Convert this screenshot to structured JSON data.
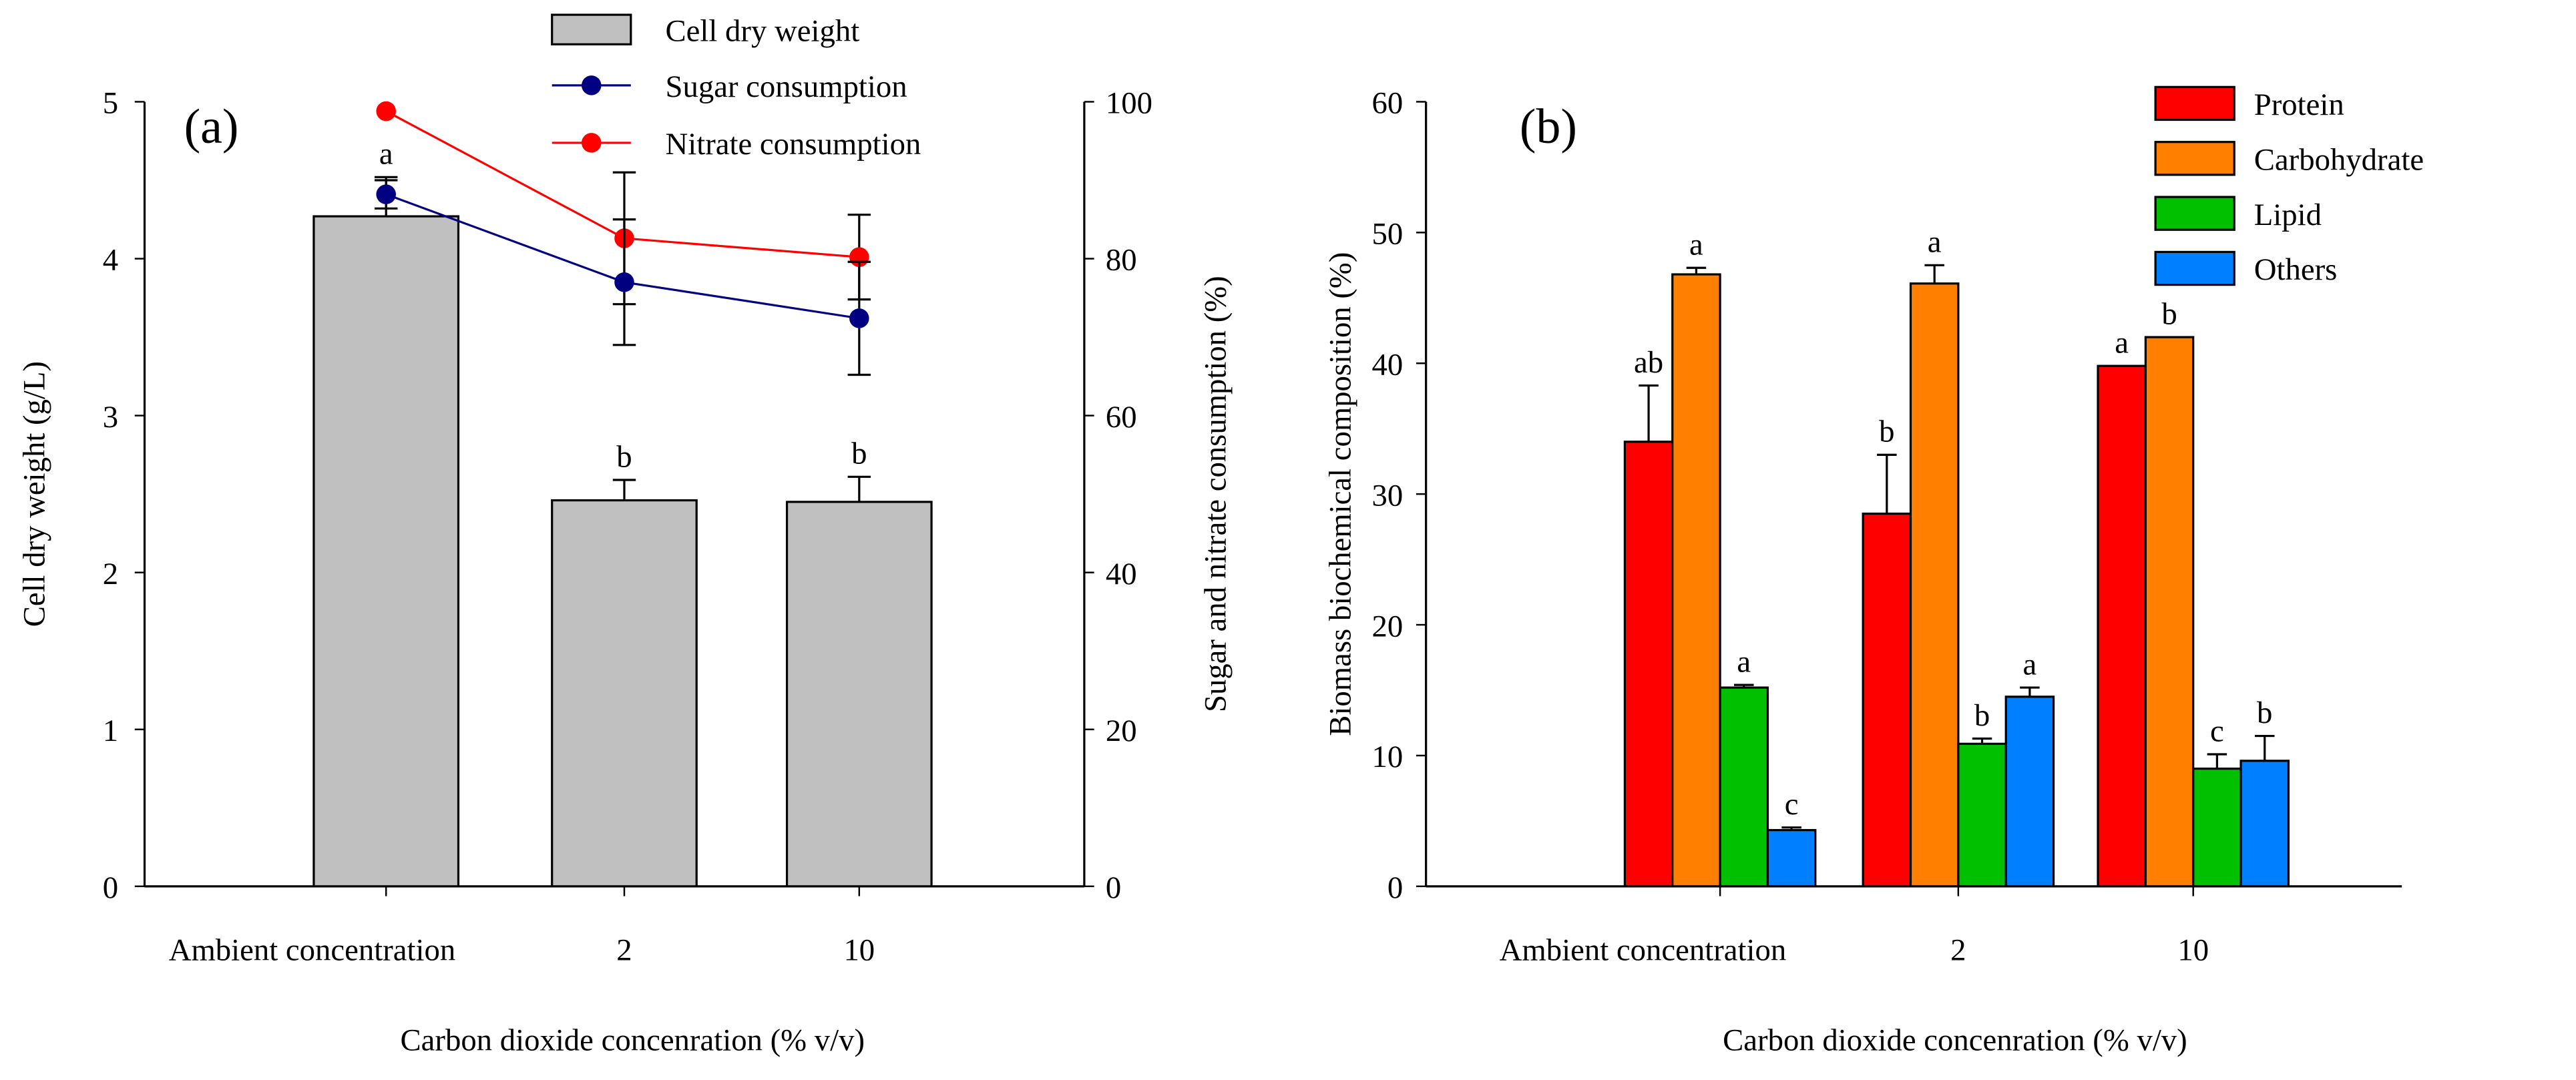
{
  "chart_data": [
    {
      "type": "bar",
      "panel_label": "(a)",
      "categories": [
        "Ambient concentration",
        "2",
        "10"
      ],
      "xlabel": "Carbon dioxide concenration (% v/v)",
      "ylabel": "Cell dry weight (g/L)",
      "ylabel_right": "Sugar and nitrate consumption (%)",
      "ylim": [
        0,
        5
      ],
      "yticks": [
        0,
        1,
        2,
        3,
        4,
        5
      ],
      "ylim_right": [
        0,
        100
      ],
      "yticks_right": [
        0,
        20,
        40,
        60,
        80,
        100
      ],
      "legend_position": "top-right",
      "series": [
        {
          "name": "Cell dry weight",
          "kind": "bar",
          "axis": "left",
          "color": "#c0c0c0",
          "values": [
            4.27,
            2.46,
            2.45
          ],
          "errors": [
            0.25,
            0.13,
            0.16
          ],
          "letters": [
            "a",
            "b",
            "b"
          ]
        },
        {
          "name": "Sugar consumption",
          "kind": "line",
          "axis": "right",
          "color": "#000080",
          "values": [
            88.2,
            77.0,
            72.4
          ],
          "errors": [
            1.8,
            8.0,
            7.2
          ]
        },
        {
          "name": "Nitrate consumption",
          "kind": "line",
          "axis": "right",
          "color": "#ff0000",
          "values": [
            98.8,
            82.6,
            80.2
          ],
          "errors": [
            0.5,
            8.4,
            5.4
          ]
        }
      ]
    },
    {
      "type": "bar",
      "panel_label": "(b)",
      "categories": [
        "Ambient concentration",
        "2",
        "10"
      ],
      "xlabel": "Carbon dioxide concenration (% v/v)",
      "ylabel": "Biomass biochemical composition (%)",
      "ylim": [
        0,
        60
      ],
      "yticks": [
        0,
        10,
        20,
        30,
        40,
        50,
        60
      ],
      "legend_position": "top-right",
      "series": [
        {
          "name": "Protein",
          "color": "#ff0000",
          "values": [
            34.0,
            28.5,
            39.8
          ],
          "errors": [
            4.3,
            4.5,
            0
          ],
          "letters": [
            "ab",
            "b",
            "a"
          ]
        },
        {
          "name": "Carbohydrate",
          "color": "#ff8000",
          "values": [
            46.8,
            46.1,
            42.0
          ],
          "errors": [
            0.5,
            1.4,
            0
          ],
          "letters": [
            "a",
            "a",
            "b"
          ]
        },
        {
          "name": "Lipid",
          "color": "#00c000",
          "values": [
            15.2,
            10.9,
            9.0
          ],
          "errors": [
            0.2,
            0.4,
            1.1
          ],
          "letters": [
            "a",
            "b",
            "c"
          ]
        },
        {
          "name": "Others",
          "color": "#0080ff",
          "values": [
            4.3,
            14.5,
            9.6
          ],
          "errors": [
            0.2,
            0.7,
            1.9
          ],
          "letters": [
            "c",
            "a",
            "b"
          ]
        }
      ]
    }
  ]
}
